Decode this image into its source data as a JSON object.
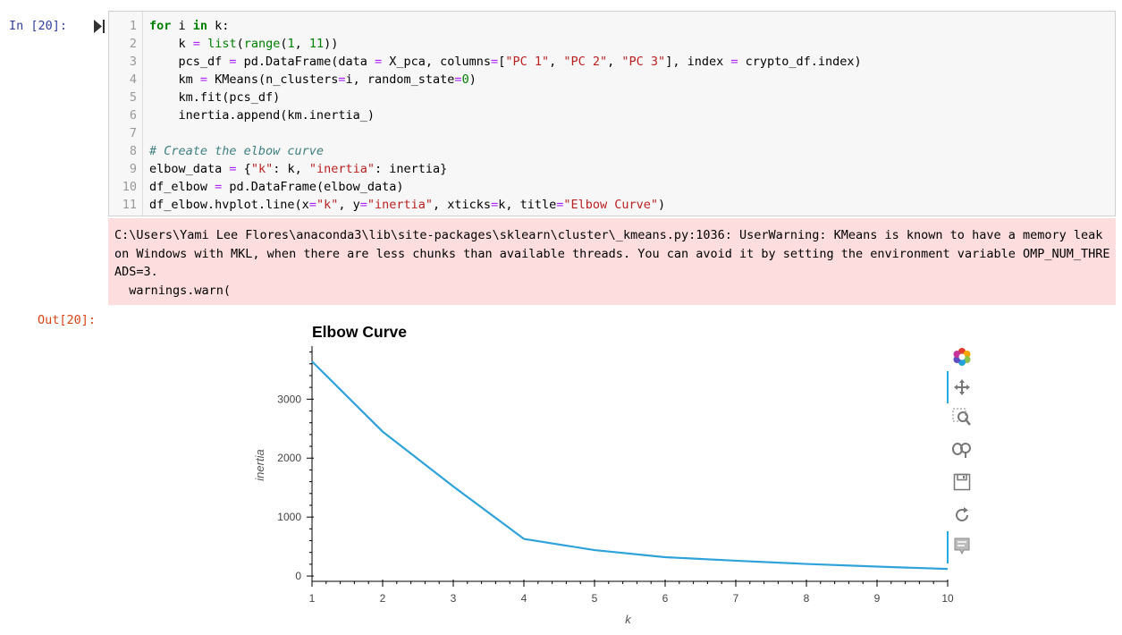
{
  "cell": {
    "in_prompt": "In [20]:",
    "out_prompt": "Out[20]:",
    "line_numbers": [
      "1",
      "2",
      "3",
      "4",
      "5",
      "6",
      "7",
      "8",
      "9",
      "10",
      "11"
    ],
    "code_lines": [
      [
        {
          "t": "kw",
          "v": "for"
        },
        {
          "t": "",
          "v": " i "
        },
        {
          "t": "kw",
          "v": "in"
        },
        {
          "t": "",
          "v": " k:"
        }
      ],
      [
        {
          "t": "",
          "v": "    k "
        },
        {
          "t": "op",
          "v": "="
        },
        {
          "t": "",
          "v": " "
        },
        {
          "t": "bi",
          "v": "list"
        },
        {
          "t": "",
          "v": "("
        },
        {
          "t": "bi",
          "v": "range"
        },
        {
          "t": "",
          "v": "("
        },
        {
          "t": "num",
          "v": "1"
        },
        {
          "t": "",
          "v": ", "
        },
        {
          "t": "num",
          "v": "11"
        },
        {
          "t": "",
          "v": "))"
        }
      ],
      [
        {
          "t": "",
          "v": "    pcs_df "
        },
        {
          "t": "op",
          "v": "="
        },
        {
          "t": "",
          "v": " pd.DataFrame(data "
        },
        {
          "t": "op",
          "v": "="
        },
        {
          "t": "",
          "v": " X_pca, columns"
        },
        {
          "t": "op",
          "v": "="
        },
        {
          "t": "",
          "v": "["
        },
        {
          "t": "str",
          "v": "\"PC 1\""
        },
        {
          "t": "",
          "v": ", "
        },
        {
          "t": "str",
          "v": "\"PC 2\""
        },
        {
          "t": "",
          "v": ", "
        },
        {
          "t": "str",
          "v": "\"PC 3\""
        },
        {
          "t": "",
          "v": "], index "
        },
        {
          "t": "op",
          "v": "="
        },
        {
          "t": "",
          "v": " crypto_df.index)"
        }
      ],
      [
        {
          "t": "",
          "v": "    km "
        },
        {
          "t": "op",
          "v": "="
        },
        {
          "t": "",
          "v": " KMeans(n_clusters"
        },
        {
          "t": "op",
          "v": "="
        },
        {
          "t": "",
          "v": "i, random_state"
        },
        {
          "t": "op",
          "v": "="
        },
        {
          "t": "num",
          "v": "0"
        },
        {
          "t": "",
          "v": ")"
        }
      ],
      [
        {
          "t": "",
          "v": "    km.fit(pcs_df)"
        }
      ],
      [
        {
          "t": "",
          "v": "    inertia.append(km.inertia_)"
        }
      ],
      [
        {
          "t": "",
          "v": ""
        }
      ],
      [
        {
          "t": "cm",
          "v": "# Create the elbow curve"
        }
      ],
      [
        {
          "t": "",
          "v": "elbow_data "
        },
        {
          "t": "op",
          "v": "="
        },
        {
          "t": "",
          "v": " {"
        },
        {
          "t": "str",
          "v": "\"k\""
        },
        {
          "t": "",
          "v": ": k, "
        },
        {
          "t": "str",
          "v": "\"inertia\""
        },
        {
          "t": "",
          "v": ": inertia}"
        }
      ],
      [
        {
          "t": "",
          "v": "df_elbow "
        },
        {
          "t": "op",
          "v": "="
        },
        {
          "t": "",
          "v": " pd.DataFrame(elbow_data)"
        }
      ],
      [
        {
          "t": "",
          "v": "df_elbow.hvplot.line(x"
        },
        {
          "t": "op",
          "v": "="
        },
        {
          "t": "str",
          "v": "\"k\""
        },
        {
          "t": "",
          "v": ", y"
        },
        {
          "t": "op",
          "v": "="
        },
        {
          "t": "str",
          "v": "\"inertia\""
        },
        {
          "t": "",
          "v": ", xticks"
        },
        {
          "t": "op",
          "v": "="
        },
        {
          "t": "",
          "v": "k, title"
        },
        {
          "t": "op",
          "v": "="
        },
        {
          "t": "str",
          "v": "\"Elbow Curve\""
        },
        {
          "t": "",
          "v": ")"
        }
      ]
    ],
    "stderr_text": "C:\\Users\\Yami Lee Flores\\anaconda3\\lib\\site-packages\\sklearn\\cluster\\_kmeans.py:1036: UserWarning: KMeans is known to have a memory leak on Windows with MKL, when there are less chunks than available threads. You can avoid it by setting the environment variable OMP_NUM_THREADS=3.\n  warnings.warn("
  },
  "toolbar": {
    "tools": [
      "bokeh-logo-icon",
      "pan-icon",
      "box-zoom-icon",
      "wheel-zoom-icon",
      "save-icon",
      "reset-icon",
      "hover-icon"
    ]
  },
  "chart_data": {
    "type": "line",
    "title": "Elbow Curve",
    "xlabel": "k",
    "ylabel": "inertia",
    "x": [
      1,
      2,
      3,
      4,
      5,
      6,
      7,
      8,
      9,
      10
    ],
    "series": [
      {
        "values": [
          3640,
          2450,
          1520,
          630,
          440,
          320,
          260,
          205,
          160,
          120
        ]
      }
    ],
    "xticks": [
      "1",
      "2",
      "3",
      "4",
      "5",
      "6",
      "7",
      "8",
      "9",
      "10"
    ],
    "yticks": [
      "0",
      "1000",
      "2000",
      "3000"
    ],
    "xlim": [
      1,
      10
    ],
    "ylim": [
      -90,
      3900
    ],
    "grid": false,
    "line_color": "#30a2da"
  }
}
